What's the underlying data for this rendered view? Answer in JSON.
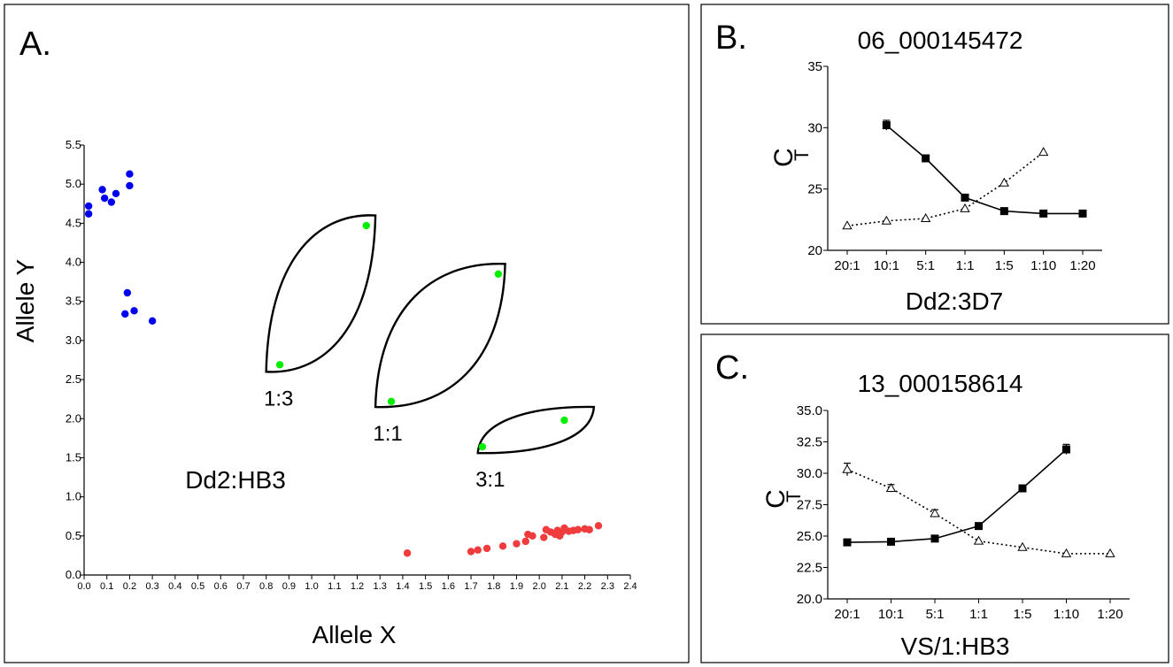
{
  "colors": {
    "blue": "#0000ee",
    "red": "#f03c3c",
    "green": "#00ee00",
    "axis": "#000000"
  },
  "chart_data": [
    {
      "panel": "A.",
      "type": "scatter",
      "title": "",
      "xlabel": "Allele X",
      "ylabel": "Allele Y",
      "annotation": "Dd2:HB3",
      "xlim": [
        0,
        2.4
      ],
      "ylim": [
        0,
        5.5
      ],
      "xticks": [
        "0.0",
        "0.1",
        "0.2",
        "0.3",
        "0.4",
        "0.5",
        "0.6",
        "0.7",
        "0.8",
        "0.9",
        "1.0",
        "1.1",
        "1.2",
        "1.3",
        "1.4",
        "1.5",
        "1.6",
        "1.7",
        "1.8",
        "1.9",
        "2.0",
        "2.1",
        "2.2",
        "2.3",
        "2.4"
      ],
      "yticks": [
        "0.0",
        "0.5",
        "1.0",
        "1.5",
        "2.0",
        "2.5",
        "3.0",
        "3.5",
        "4.0",
        "4.5",
        "5.0",
        "5.5"
      ],
      "series": [
        {
          "color": "blue",
          "points": [
            [
              0.02,
              4.72
            ],
            [
              0.02,
              4.62
            ],
            [
              0.08,
              4.93
            ],
            [
              0.09,
              4.82
            ],
            [
              0.12,
              4.77
            ],
            [
              0.14,
              4.88
            ],
            [
              0.2,
              5.13
            ],
            [
              0.2,
              4.98
            ],
            [
              0.19,
              3.61
            ],
            [
              0.18,
              3.34
            ],
            [
              0.22,
              3.38
            ],
            [
              0.3,
              3.25
            ]
          ]
        },
        {
          "color": "green",
          "points": [
            [
              1.24,
              4.47
            ],
            [
              0.86,
              2.69
            ],
            [
              1.82,
              3.85
            ],
            [
              1.35,
              2.22
            ],
            [
              2.11,
              1.98
            ],
            [
              1.75,
              1.64
            ]
          ]
        },
        {
          "color": "red",
          "points": [
            [
              1.42,
              0.28
            ],
            [
              1.7,
              0.3
            ],
            [
              1.73,
              0.32
            ],
            [
              1.77,
              0.34
            ],
            [
              1.84,
              0.37
            ],
            [
              1.9,
              0.4
            ],
            [
              1.94,
              0.43
            ],
            [
              1.95,
              0.52
            ],
            [
              1.97,
              0.5
            ],
            [
              2.02,
              0.48
            ],
            [
              2.03,
              0.58
            ],
            [
              2.05,
              0.55
            ],
            [
              2.07,
              0.52
            ],
            [
              2.08,
              0.57
            ],
            [
              2.09,
              0.5
            ],
            [
              2.1,
              0.55
            ],
            [
              2.11,
              0.6
            ],
            [
              2.13,
              0.56
            ],
            [
              2.15,
              0.57
            ],
            [
              2.17,
              0.58
            ],
            [
              2.2,
              0.59
            ],
            [
              2.22,
              0.58
            ],
            [
              2.26,
              0.63
            ]
          ]
        }
      ],
      "groups": [
        {
          "label": "1:3",
          "corners": [
            [
              0.8,
              2.6
            ],
            [
              1.28,
              4.6
            ]
          ]
        },
        {
          "label": "1:1",
          "corners": [
            [
              1.28,
              2.15
            ],
            [
              1.85,
              3.98
            ]
          ]
        },
        {
          "label": "3:1",
          "corners": [
            [
              1.73,
              1.56
            ],
            [
              2.24,
              2.15
            ]
          ]
        }
      ]
    },
    {
      "panel": "B.",
      "type": "line",
      "title": "06_000145472",
      "xlabel": "Dd2:3D7",
      "ylabel": "C",
      "ylabel_sub": "T",
      "categories": [
        "20:1",
        "10:1",
        "5:1",
        "1:1",
        "1:5",
        "1:10",
        "1:20"
      ],
      "ylim": [
        20,
        35
      ],
      "yticks": [
        "20",
        "25",
        "30",
        "35"
      ],
      "series": [
        {
          "marker": "square",
          "style": "solid",
          "values": [
            null,
            30.2,
            27.5,
            24.3,
            23.2,
            23.0,
            23.0
          ],
          "errors": [
            null,
            0.4,
            null,
            null,
            null,
            null,
            null
          ]
        },
        {
          "marker": "triangle",
          "style": "dotted",
          "values": [
            22.0,
            22.4,
            22.6,
            23.4,
            25.5,
            28.0,
            null
          ]
        }
      ]
    },
    {
      "panel": "C.",
      "type": "line",
      "title": "13_000158614",
      "xlabel": "VS/1:HB3",
      "ylabel": "C",
      "ylabel_sub": "T",
      "categories": [
        "20:1",
        "10:1",
        "5:1",
        "1:1",
        "1:5",
        "1:10",
        "1:20"
      ],
      "ylim": [
        20,
        35
      ],
      "yticks": [
        "20.0",
        "22.5",
        "25.0",
        "27.5",
        "30.0",
        "32.5",
        "35.0"
      ],
      "series": [
        {
          "marker": "square",
          "style": "solid",
          "values": [
            24.5,
            24.55,
            24.8,
            25.8,
            28.8,
            31.9,
            null
          ],
          "errors": [
            null,
            null,
            null,
            null,
            0.2,
            0.4,
            null
          ]
        },
        {
          "marker": "triangle",
          "style": "dotted",
          "values": [
            30.3,
            28.8,
            26.8,
            24.6,
            24.1,
            23.6,
            23.6
          ],
          "errors": [
            0.5,
            0.3,
            0.3,
            null,
            null,
            null,
            null
          ]
        }
      ]
    }
  ]
}
